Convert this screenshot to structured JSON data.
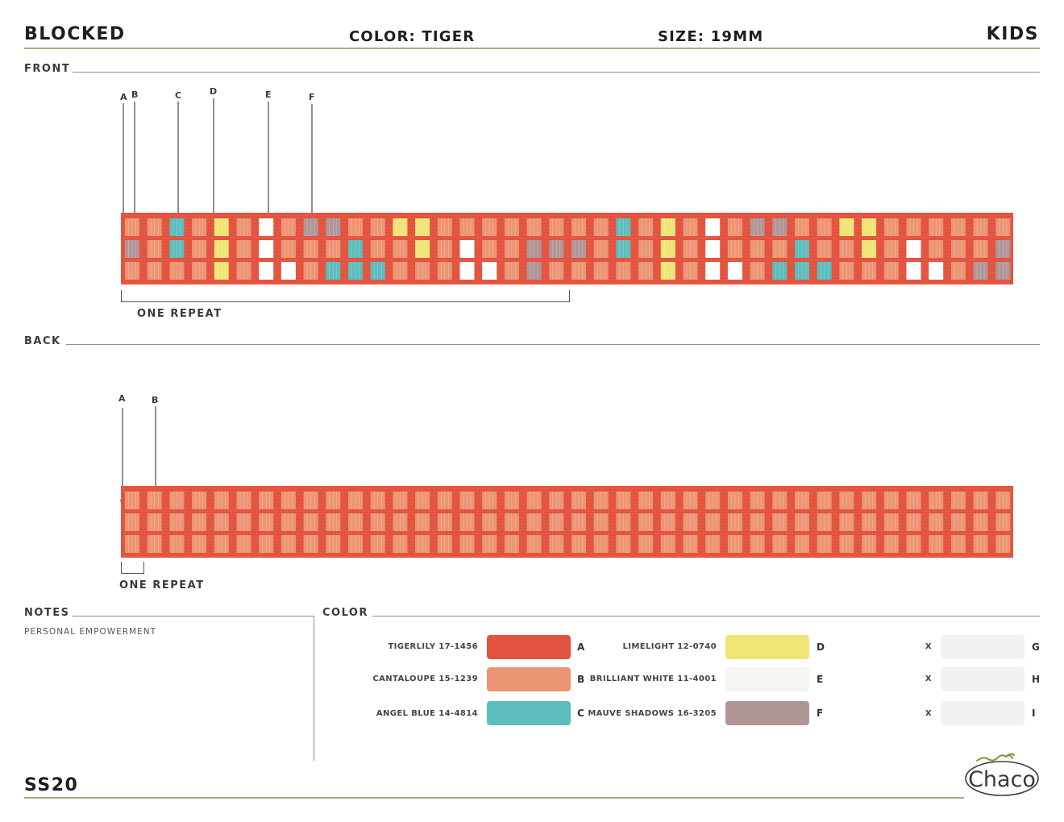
{
  "header": {
    "style": "BLOCKED",
    "color": "COLOR: TIGER",
    "size": "SIZE: 19MM",
    "audience": "KIDS"
  },
  "front": {
    "section_label": "FRONT",
    "callouts": [
      "A",
      "B",
      "C",
      "D",
      "E",
      "F"
    ],
    "repeat_label": "ONE REPEAT"
  },
  "back": {
    "section_label": "BACK",
    "callouts": [
      "A",
      "B"
    ],
    "repeat_label": "ONE REPEAT"
  },
  "notes": {
    "section_label": "NOTES",
    "text": "PERSONAL EMPOWERMENT"
  },
  "color_section": {
    "section_label": "COLOR",
    "swatches": [
      {
        "name": "TIGERLILY 17-1456",
        "letter": "A",
        "hex": "#e2533f"
      },
      {
        "name": "CANTALOUPE 15-1239",
        "letter": "B",
        "hex": "#ec9574"
      },
      {
        "name": "ANGEL BLUE 14-4814",
        "letter": "C",
        "hex": "#5dbdbd"
      },
      {
        "name": "LIMELIGHT 12-0740",
        "letter": "D",
        "hex": "#efe575"
      },
      {
        "name": "BRILLIANT WHITE 11-4001",
        "letter": "E",
        "hex": "#f4f4f1"
      },
      {
        "name": "MAUVE SHADOWS 16-3205",
        "letter": "F",
        "hex": "#b19698"
      },
      {
        "name": "X",
        "letter": "G",
        "hex": "#f1f1f1"
      },
      {
        "name": "X",
        "letter": "H",
        "hex": "#f1f1f1"
      },
      {
        "name": "X",
        "letter": "I",
        "hex": "#f1f1f1"
      }
    ]
  },
  "footer": {
    "season": "SS20",
    "logo_text": "Chaco"
  }
}
